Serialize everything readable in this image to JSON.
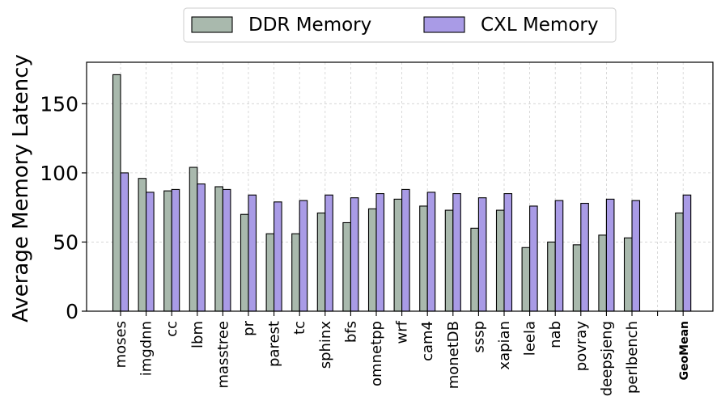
{
  "chart_data": {
    "type": "bar",
    "title": "",
    "xlabel": "",
    "ylabel": "Average Memory Latency",
    "ylim": [
      0,
      180
    ],
    "yticks": [
      0,
      50,
      100,
      150
    ],
    "grid": true,
    "legend_placement": "top-center",
    "categories": [
      "moses",
      "imgdnn",
      "cc",
      "lbm",
      "masstree",
      "pr",
      "parest",
      "tc",
      "sphinx",
      "bfs",
      "omnetpp",
      "wrf",
      "cam4",
      "monetDB",
      "sssp",
      "xapian",
      "leela",
      "nab",
      "povray",
      "deepsjeng",
      "perlbench",
      "",
      "GeoMean"
    ],
    "emphasized_category": "GeoMean",
    "series": [
      {
        "name": "DDR Memory",
        "color": "#a9b9ad",
        "values": [
          171,
          96,
          87,
          104,
          90,
          70,
          56,
          56,
          71,
          64,
          74,
          81,
          76,
          73,
          60,
          73,
          46,
          50,
          48,
          55,
          53,
          0,
          71
        ]
      },
      {
        "name": "CXL Memory",
        "color": "#a99be6",
        "values": [
          100,
          86,
          88,
          92,
          88,
          84,
          79,
          80,
          84,
          82,
          85,
          88,
          86,
          85,
          82,
          85,
          76,
          80,
          78,
          81,
          80,
          0,
          84
        ]
      }
    ]
  }
}
